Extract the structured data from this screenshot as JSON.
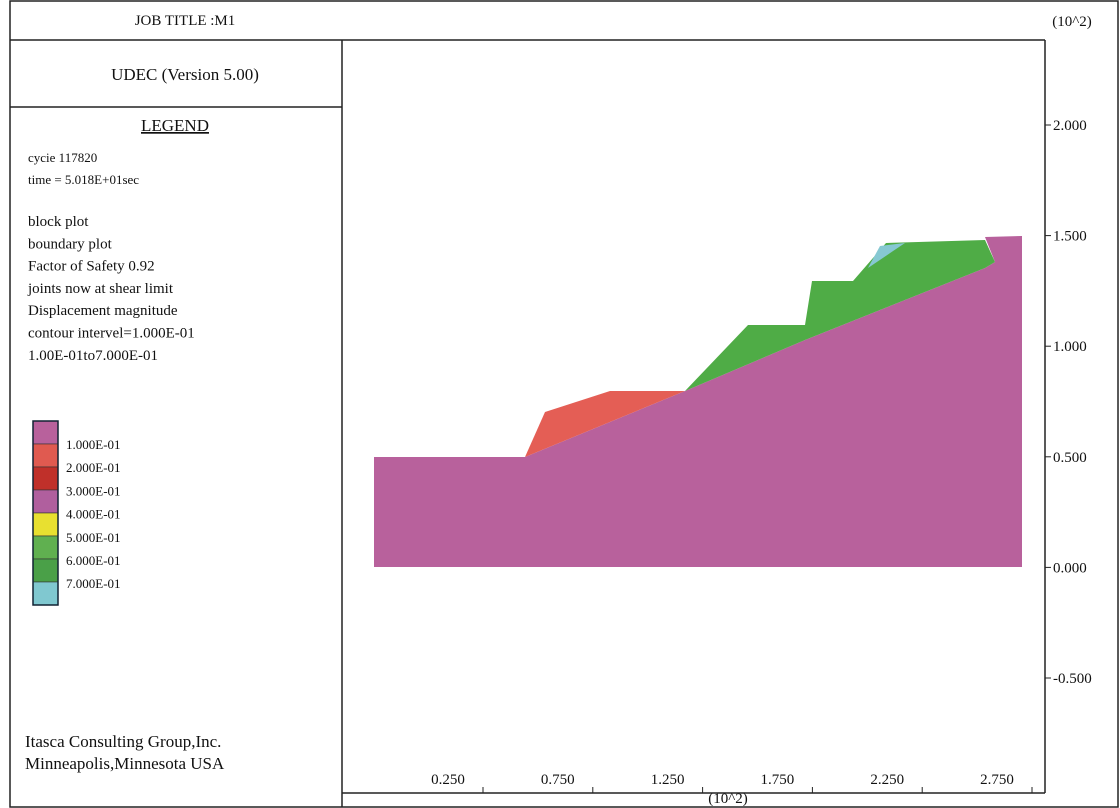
{
  "header": {
    "title": "JOB TITLE :M1",
    "scale_note": "(10^2)"
  },
  "program": "UDEC (Version 5.00)",
  "legend": {
    "heading": "LEGEND",
    "cycle": "cycie  117820",
    "time": "time = 5.018E+01sec",
    "lines": [
      "block plot",
      "boundary plot",
      "Factor of Safety 0.92",
      "joints now at shear limit",
      "Displacement magnitude",
      "contour intervel=1.000E-01",
      "1.00E-01to7.000E-01"
    ],
    "contours": [
      "1.000E-01",
      "2.000E-01",
      "3.000E-01",
      "4.000E-01",
      "5.000E-01",
      "6.000E-01",
      "7.000E-01"
    ]
  },
  "footer": [
    "Itasca Consulting Group,Inc.",
    "Minneapolis,Minnesota USA"
  ],
  "axes": {
    "y_ticks": [
      "2.000",
      "1.500",
      "1.000",
      "0.500",
      "0.000",
      "-0.500"
    ],
    "x_ticks": [
      "0.250",
      "0.750",
      "1.250",
      "1.750",
      "2.250",
      "2.750"
    ],
    "x_scale_note": "(10^2)"
  }
}
